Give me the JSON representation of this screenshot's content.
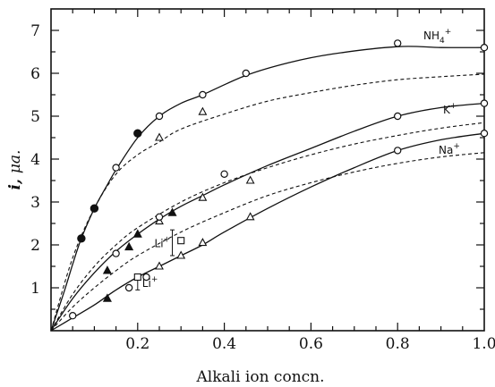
{
  "chart_data": {
    "type": "scatter",
    "title": "",
    "xlabel": "Alkali ion concn.",
    "ylabel": "i, μa.",
    "ylabel_main": "i,",
    "ylabel_unit": "μa.",
    "xlim": [
      0,
      1.0
    ],
    "ylim": [
      0,
      7.5
    ],
    "x_ticks": [
      0.2,
      0.4,
      0.6,
      0.8,
      1.0
    ],
    "x_tick_labels": [
      "0.2",
      "0.4",
      "0.6",
      "0.8",
      "1.0"
    ],
    "y_ticks": [
      1,
      2,
      3,
      4,
      5,
      6,
      7
    ],
    "y_tick_labels": [
      "1",
      "2",
      "3",
      "4",
      "5",
      "6",
      "7"
    ],
    "grid": false,
    "series": [
      {
        "name": "NH4+",
        "label_main": "NH",
        "label_sub": "4",
        "label_sup": "+",
        "solid_curve": [
          [
            0,
            0
          ],
          [
            0.03,
            0.9
          ],
          [
            0.05,
            1.55
          ],
          [
            0.07,
            2.15
          ],
          [
            0.1,
            2.85
          ],
          [
            0.13,
            3.4
          ],
          [
            0.15,
            3.75
          ],
          [
            0.2,
            4.5
          ],
          [
            0.25,
            5.0
          ],
          [
            0.3,
            5.3
          ],
          [
            0.35,
            5.5
          ],
          [
            0.45,
            5.95
          ],
          [
            0.55,
            6.25
          ],
          [
            0.65,
            6.45
          ],
          [
            0.8,
            6.62
          ],
          [
            0.9,
            6.6
          ],
          [
            1.0,
            6.6
          ]
        ],
        "dashed_curve": [
          [
            0,
            0
          ],
          [
            0.05,
            1.7
          ],
          [
            0.1,
            2.85
          ],
          [
            0.15,
            3.65
          ],
          [
            0.2,
            4.1
          ],
          [
            0.25,
            4.4
          ],
          [
            0.3,
            4.7
          ],
          [
            0.4,
            5.05
          ],
          [
            0.5,
            5.35
          ],
          [
            0.6,
            5.55
          ],
          [
            0.7,
            5.72
          ],
          [
            0.8,
            5.85
          ],
          [
            0.9,
            5.92
          ],
          [
            1.0,
            5.98
          ]
        ],
        "points": [
          {
            "x": 0.07,
            "y": 2.15,
            "marker": "filled-circle"
          },
          {
            "x": 0.1,
            "y": 2.85,
            "marker": "filled-circle"
          },
          {
            "x": 0.15,
            "y": 3.8,
            "marker": "open-circle"
          },
          {
            "x": 0.2,
            "y": 4.6,
            "marker": "filled-circle"
          },
          {
            "x": 0.25,
            "y": 4.5,
            "marker": "open-triangle"
          },
          {
            "x": 0.25,
            "y": 5.0,
            "marker": "open-circle"
          },
          {
            "x": 0.35,
            "y": 5.1,
            "marker": "open-triangle"
          },
          {
            "x": 0.35,
            "y": 5.5,
            "marker": "open-circle"
          },
          {
            "x": 0.45,
            "y": 6.0,
            "marker": "open-circle"
          },
          {
            "x": 0.8,
            "y": 6.7,
            "marker": "open-circle"
          },
          {
            "x": 1.0,
            "y": 6.6,
            "marker": "open-circle"
          }
        ]
      },
      {
        "name": "K+",
        "label_main": "K",
        "label_sub": "",
        "label_sup": "+",
        "solid_curve": [
          [
            0,
            0
          ],
          [
            0.05,
            0.75
          ],
          [
            0.1,
            1.35
          ],
          [
            0.15,
            1.85
          ],
          [
            0.2,
            2.25
          ],
          [
            0.25,
            2.6
          ],
          [
            0.3,
            2.9
          ],
          [
            0.35,
            3.15
          ],
          [
            0.4,
            3.4
          ],
          [
            0.5,
            3.85
          ],
          [
            0.6,
            4.25
          ],
          [
            0.7,
            4.65
          ],
          [
            0.8,
            5.0
          ],
          [
            0.9,
            5.2
          ],
          [
            1.0,
            5.3
          ]
        ],
        "dashed_curve": [
          [
            0,
            0
          ],
          [
            0.05,
            0.85
          ],
          [
            0.1,
            1.5
          ],
          [
            0.15,
            2.0
          ],
          [
            0.2,
            2.4
          ],
          [
            0.3,
            3.0
          ],
          [
            0.4,
            3.45
          ],
          [
            0.5,
            3.8
          ],
          [
            0.6,
            4.1
          ],
          [
            0.7,
            4.35
          ],
          [
            0.8,
            4.55
          ],
          [
            0.9,
            4.72
          ],
          [
            1.0,
            4.85
          ]
        ],
        "points": [
          {
            "x": 0.13,
            "y": 1.4,
            "marker": "filled-triangle"
          },
          {
            "x": 0.15,
            "y": 1.8,
            "marker": "open-circle"
          },
          {
            "x": 0.18,
            "y": 1.95,
            "marker": "filled-triangle"
          },
          {
            "x": 0.2,
            "y": 2.25,
            "marker": "filled-triangle"
          },
          {
            "x": 0.25,
            "y": 2.55,
            "marker": "open-triangle"
          },
          {
            "x": 0.25,
            "y": 2.65,
            "marker": "open-circle"
          },
          {
            "x": 0.28,
            "y": 2.75,
            "marker": "filled-triangle"
          },
          {
            "x": 0.35,
            "y": 3.1,
            "marker": "open-triangle"
          },
          {
            "x": 0.4,
            "y": 3.65,
            "marker": "open-circle"
          },
          {
            "x": 0.46,
            "y": 3.5,
            "marker": "open-triangle"
          },
          {
            "x": 0.8,
            "y": 5.0,
            "marker": "open-circle"
          },
          {
            "x": 1.0,
            "y": 5.3,
            "marker": "open-circle"
          }
        ]
      },
      {
        "name": "Na+",
        "label_main": "Na",
        "label_sub": "",
        "label_sup": "+",
        "solid_curve": [
          [
            0,
            0
          ],
          [
            0.05,
            0.3
          ],
          [
            0.1,
            0.6
          ],
          [
            0.15,
            0.95
          ],
          [
            0.2,
            1.25
          ],
          [
            0.25,
            1.5
          ],
          [
            0.3,
            1.75
          ],
          [
            0.35,
            2.0
          ],
          [
            0.4,
            2.3
          ],
          [
            0.5,
            2.85
          ],
          [
            0.6,
            3.35
          ],
          [
            0.7,
            3.8
          ],
          [
            0.8,
            4.2
          ],
          [
            0.9,
            4.45
          ],
          [
            1.0,
            4.6
          ]
        ],
        "dashed_curve": [
          [
            0,
            0
          ],
          [
            0.05,
            0.55
          ],
          [
            0.1,
            1.0
          ],
          [
            0.15,
            1.4
          ],
          [
            0.2,
            1.75
          ],
          [
            0.3,
            2.3
          ],
          [
            0.4,
            2.75
          ],
          [
            0.5,
            3.15
          ],
          [
            0.6,
            3.45
          ],
          [
            0.7,
            3.7
          ],
          [
            0.8,
            3.9
          ],
          [
            0.9,
            4.05
          ],
          [
            1.0,
            4.15
          ]
        ],
        "points": [
          {
            "x": 0.05,
            "y": 0.35,
            "marker": "open-circle"
          },
          {
            "x": 0.13,
            "y": 0.75,
            "marker": "filled-triangle"
          },
          {
            "x": 0.18,
            "y": 1.0,
            "marker": "open-circle"
          },
          {
            "x": 0.22,
            "y": 1.25,
            "marker": "open-circle"
          },
          {
            "x": 0.25,
            "y": 1.5,
            "marker": "open-triangle"
          },
          {
            "x": 0.3,
            "y": 1.75,
            "marker": "open-triangle"
          },
          {
            "x": 0.35,
            "y": 2.05,
            "marker": "open-triangle"
          },
          {
            "x": 0.46,
            "y": 2.65,
            "marker": "open-triangle"
          },
          {
            "x": 0.8,
            "y": 4.2,
            "marker": "open-circle"
          },
          {
            "x": 1.0,
            "y": 4.6,
            "marker": "open-circle"
          }
        ]
      }
    ],
    "annotations": [
      {
        "text": "Li",
        "sup": "+",
        "kind": "range",
        "x": 0.2,
        "y_low": 0.95,
        "y_high": 1.3,
        "square_x": 0.2,
        "square_y": 1.25
      },
      {
        "text": "Li",
        "sup": "+",
        "kind": "range",
        "x": 0.28,
        "y_low": 1.75,
        "y_high": 2.35,
        "square_x": 0.3,
        "square_y": 2.1
      }
    ]
  }
}
